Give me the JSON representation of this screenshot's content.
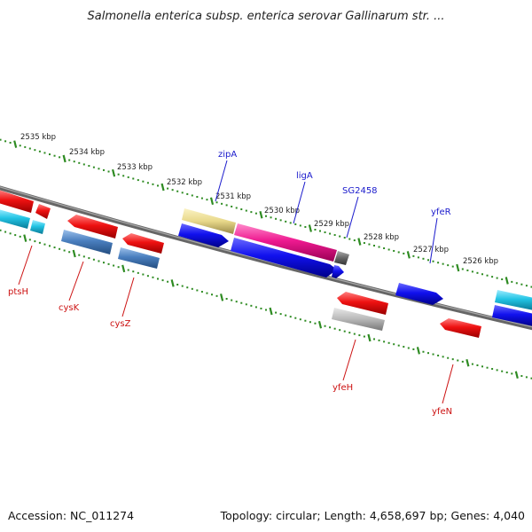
{
  "title": "Salmonella enterica subsp. enterica serovar Gallinarum str. ...",
  "footer": {
    "accession": "Accession: NC_011274",
    "summary": "Topology: circular; Length: 4,658,697 bp; Genes: 4,040"
  },
  "ticks": [
    "2535 kbp",
    "2534 kbp",
    "2533 kbp",
    "2532 kbp",
    "2531 kbp",
    "2530 kbp",
    "2529 kbp",
    "2528 kbp",
    "2527 kbp",
    "2526 kbp"
  ],
  "labels": {
    "top": [
      "zipA",
      "ligA",
      "SG2458",
      "yfeR"
    ],
    "bottom": [
      "ptsH",
      "cysK",
      "cysZ",
      "yfeH",
      "yfeN"
    ]
  },
  "colors": {
    "forward_label": "#1a1acc",
    "reverse_label": "#cc1111",
    "backbone": "#777777",
    "scale_dots": "#2e8b22",
    "red": "#ee1111",
    "blue": "#1111ee",
    "cyan": "#22c4e4",
    "steelblue": "#4a7fbf",
    "pink": "#ee1a90",
    "khaki": "#e8d88a",
    "gray": "#b8b8b8",
    "darkgray": "#666666"
  }
}
